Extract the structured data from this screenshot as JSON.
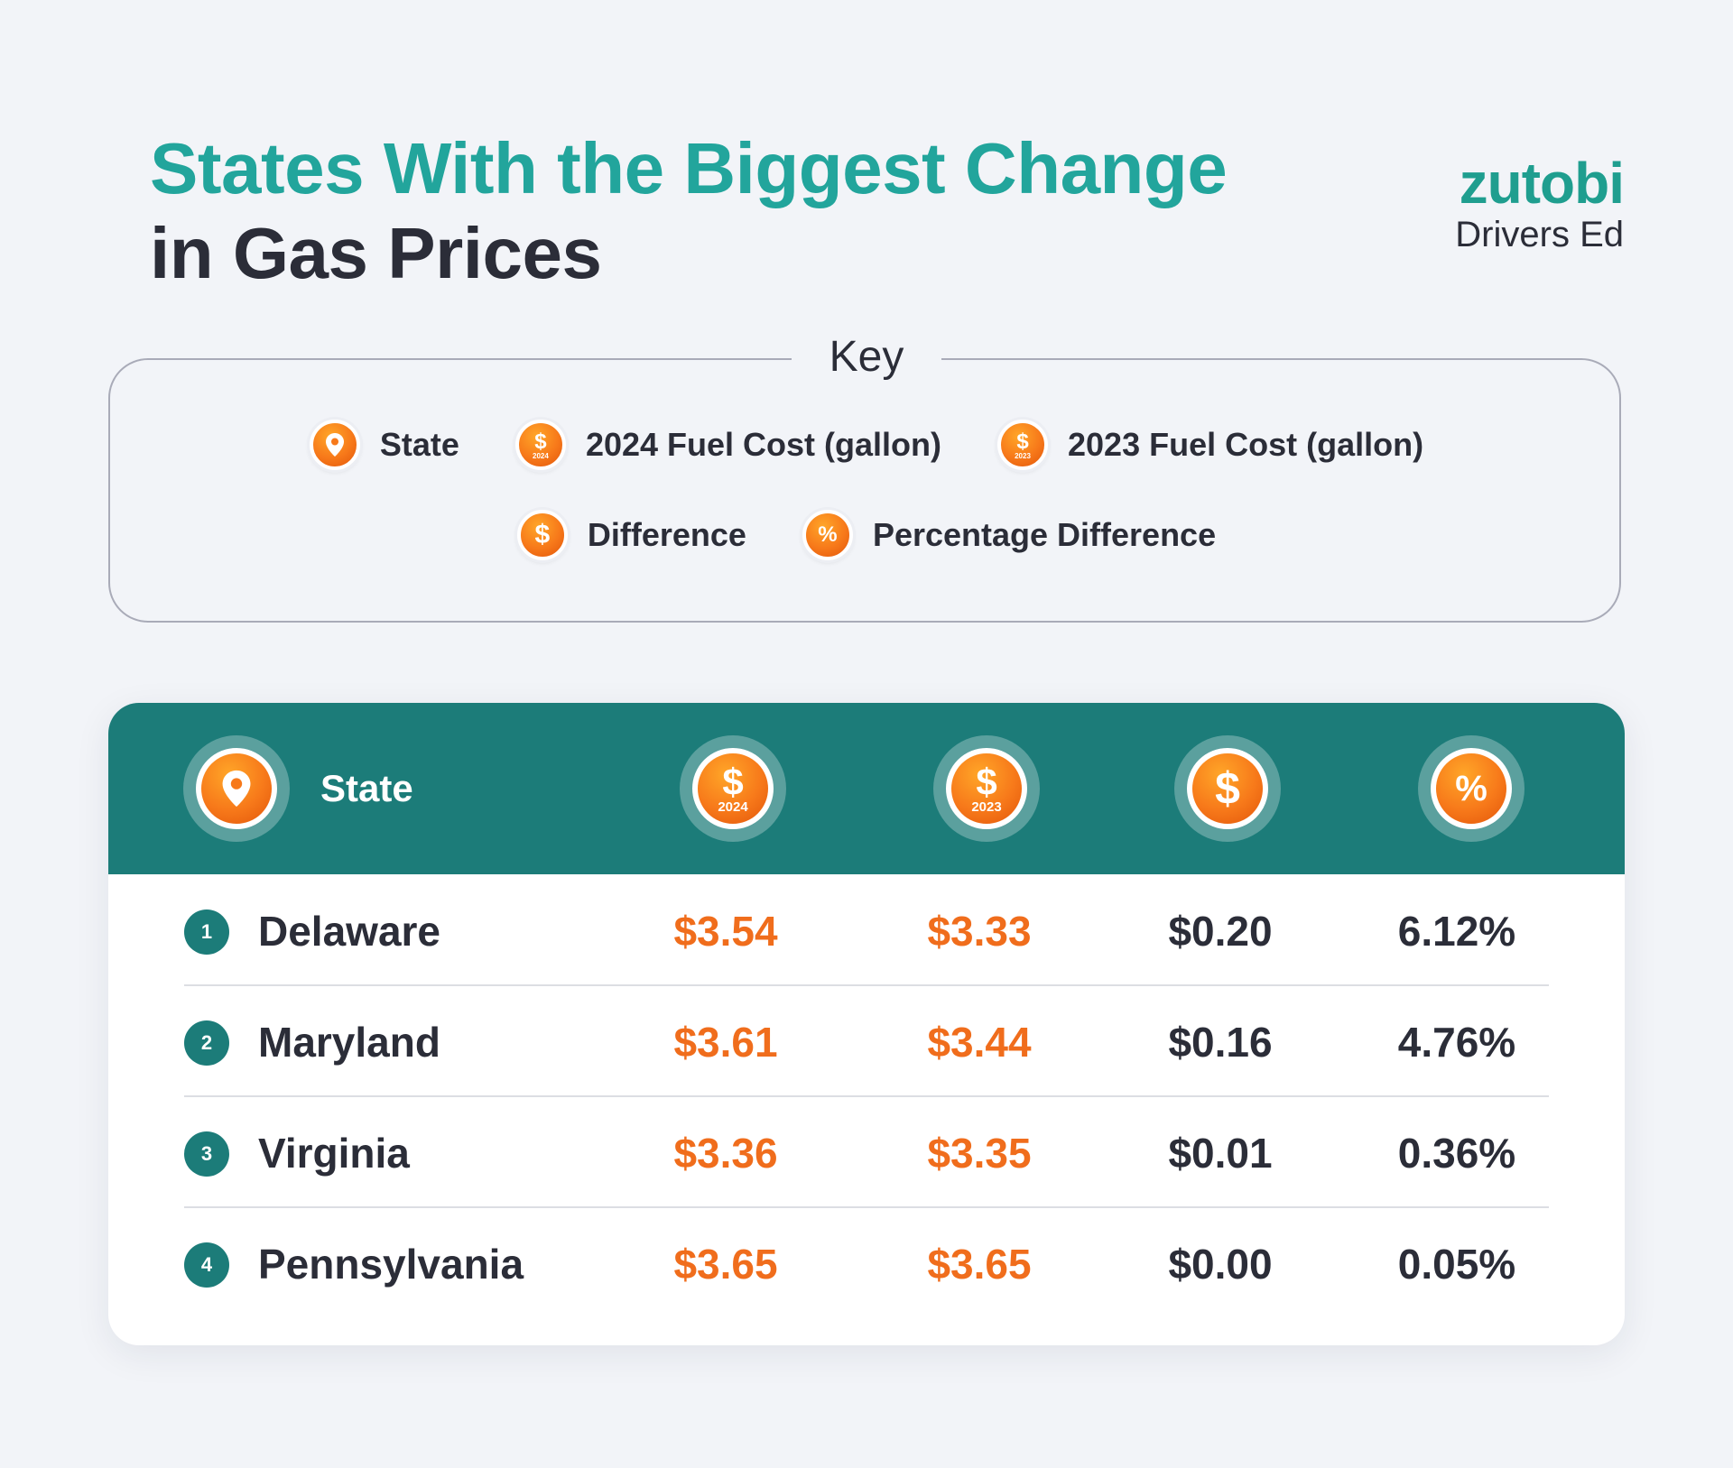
{
  "title": {
    "line1": "States With the Biggest Change",
    "line2": "in Gas Prices"
  },
  "logo": {
    "brand": "zutobi",
    "subtitle": "Drivers Ed"
  },
  "key": {
    "title": "Key",
    "items": [
      {
        "icon": "location-pin-icon",
        "label": "State"
      },
      {
        "icon": "dollar-2024-icon",
        "year": "2024",
        "label": "2024 Fuel Cost (gallon)"
      },
      {
        "icon": "dollar-2023-icon",
        "year": "2023",
        "label": "2023 Fuel Cost (gallon)"
      },
      {
        "icon": "dollar-icon",
        "label": "Difference"
      },
      {
        "icon": "percent-icon",
        "label": "Percentage Difference"
      }
    ]
  },
  "table": {
    "header": {
      "state_label": "State",
      "year_2024": "2024",
      "year_2023": "2023"
    },
    "rows": [
      {
        "rank": "1",
        "state": "Delaware",
        "cost_2024": "$3.54",
        "cost_2023": "$3.33",
        "difference": "$0.20",
        "pct": "6.12%"
      },
      {
        "rank": "2",
        "state": "Maryland",
        "cost_2024": "$3.61",
        "cost_2023": "$3.44",
        "difference": "$0.16",
        "pct": "4.76%"
      },
      {
        "rank": "3",
        "state": "Virginia",
        "cost_2024": "$3.36",
        "cost_2023": "$3.35",
        "difference": "$0.01",
        "pct": "0.36%"
      },
      {
        "rank": "4",
        "state": "Pennsylvania",
        "cost_2024": "$3.65",
        "cost_2023": "$3.65",
        "difference": "$0.00",
        "pct": "0.05%"
      }
    ]
  },
  "colors": {
    "teal": "#1c7c79",
    "title_teal": "#22a59c",
    "orange": "#f06d1c",
    "dark": "#2b2d38",
    "background": "#f2f4f8"
  }
}
